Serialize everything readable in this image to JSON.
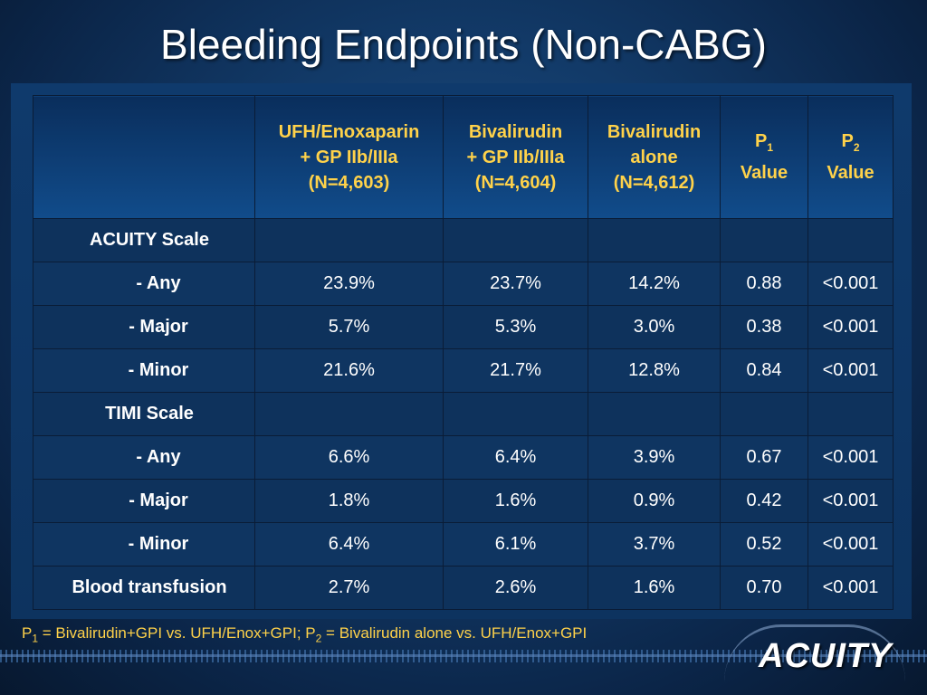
{
  "title": "Bleeding Endpoints (Non-CABG)",
  "table": {
    "headers": {
      "col1": {
        "line1": "UFH/Enoxaparin",
        "line2": "+ GP IIb/IIIa",
        "line3": "(N=4,603)"
      },
      "col2": {
        "line1": "Bivalirudin",
        "line2": "+ GP IIb/IIIa",
        "line3": "(N=4,604)"
      },
      "col3": {
        "line1": "Bivalirudin",
        "line2": "alone",
        "line3": "(N=4,612)"
      },
      "col4": {
        "p": "P",
        "sub": "1",
        "line2": "Value"
      },
      "col5": {
        "p": "P",
        "sub": "2",
        "line2": "Value"
      }
    },
    "rows": [
      {
        "label": "ACUITY Scale",
        "c1": "",
        "c2": "",
        "c3": "",
        "p1": "",
        "p2": ""
      },
      {
        "label": "- Any",
        "c1": "23.9%",
        "c2": "23.7%",
        "c3": "14.2%",
        "p1": "0.88",
        "p2": "<0.001"
      },
      {
        "label": "- Major",
        "c1": "5.7%",
        "c2": "5.3%",
        "c3": "3.0%",
        "p1": "0.38",
        "p2": "<0.001"
      },
      {
        "label": "- Minor",
        "c1": "21.6%",
        "c2": "21.7%",
        "c3": "12.8%",
        "p1": "0.84",
        "p2": "<0.001"
      },
      {
        "label": "TIMI Scale",
        "c1": "",
        "c2": "",
        "c3": "",
        "p1": "",
        "p2": ""
      },
      {
        "label": "- Any",
        "c1": "6.6%",
        "c2": "6.4%",
        "c3": "3.9%",
        "p1": "0.67",
        "p2": "<0.001"
      },
      {
        "label": "- Major",
        "c1": "1.8%",
        "c2": "1.6%",
        "c3": "0.9%",
        "p1": "0.42",
        "p2": "<0.001"
      },
      {
        "label": "- Minor",
        "c1": "6.4%",
        "c2": "6.1%",
        "c3": "3.7%",
        "p1": "0.52",
        "p2": "<0.001"
      },
      {
        "label": "Blood transfusion",
        "c1": "2.7%",
        "c2": "2.6%",
        "c3": "1.6%",
        "p1": "0.70",
        "p2": "<0.001"
      }
    ]
  },
  "footnote": {
    "p1": "P",
    "p1_sub": "1",
    "p1_text": " = Bivalirudin+GPI vs. UFH/Enox+GPI; ",
    "p2": "P",
    "p2_sub": "2",
    "p2_text": " = Bivalirudin alone vs. UFH/Enox+GPI"
  },
  "logo": "ACUITY",
  "colors": {
    "background": "#123a68",
    "header_text": "#ffd24a",
    "body_text": "#ffffff"
  }
}
